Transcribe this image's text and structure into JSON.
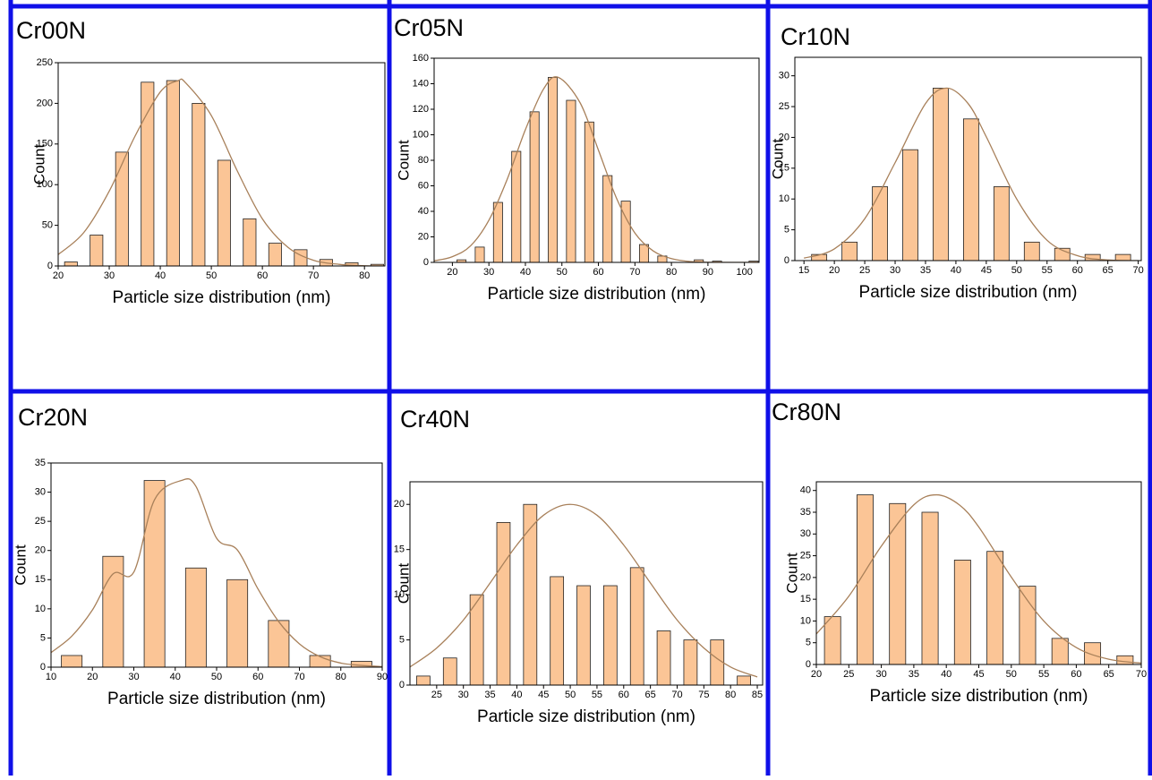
{
  "chart_data": [
    {
      "type": "histogram",
      "title": "Cr00N",
      "x_label": "Particle size distribution (nm)",
      "y_label": "Count",
      "bins": [
        20,
        25,
        30,
        35,
        40,
        45,
        50,
        55,
        60,
        65,
        70,
        75,
        80,
        85
      ],
      "values": [
        5,
        38,
        140,
        226,
        228,
        200,
        130,
        58,
        28,
        20,
        8,
        4,
        2
      ],
      "color": "#fbc596",
      "xlim": [
        20,
        84
      ],
      "ylim": [
        0,
        250
      ],
      "xticks": [
        20,
        30,
        40,
        50,
        60,
        70,
        80
      ],
      "yticks": [
        0,
        50,
        100,
        150,
        200,
        250
      ],
      "fit": {
        "color": "#a8805a",
        "x": [
          20,
          25,
          30,
          35,
          40,
          43.5,
          45,
          50,
          55,
          60,
          65,
          70,
          75,
          80,
          85
        ],
        "values": [
          14,
          41,
          92,
          159,
          214,
          228,
          225,
          185,
          118,
          58,
          23,
          7,
          2,
          0.3,
          0
        ]
      }
    },
    {
      "type": "histogram",
      "title": "Cr05N",
      "x_label": "Particle size distribution (nm)",
      "y_label": "Count",
      "bins": [
        20,
        25,
        30,
        35,
        40,
        45,
        50,
        55,
        60,
        65,
        70,
        75,
        80,
        85,
        90,
        95,
        100,
        105
      ],
      "values": [
        2,
        12,
        47,
        87,
        118,
        145,
        127,
        110,
        68,
        48,
        14,
        5,
        0,
        2,
        1,
        0,
        1
      ],
      "color": "#fbc596",
      "xlim": [
        15,
        104
      ],
      "ylim": [
        0,
        160
      ],
      "xticks": [
        20,
        30,
        40,
        50,
        60,
        70,
        80,
        90,
        100
      ],
      "yticks": [
        0,
        20,
        40,
        60,
        80,
        100,
        120,
        140,
        160
      ],
      "fit": {
        "color": "#a8805a",
        "x": [
          15,
          20,
          25,
          30,
          35,
          40,
          45,
          49,
          55,
          60,
          65,
          70,
          75,
          80,
          85,
          90,
          104
        ],
        "values": [
          1.2,
          4.5,
          13,
          33,
          65,
          104,
          136,
          145,
          125,
          88,
          50,
          23,
          9,
          3,
          0.7,
          0.1,
          0
        ]
      }
    },
    {
      "type": "histogram",
      "title": "Cr10N",
      "x_label": "Particle size distribution (nm)",
      "y_label": "Count",
      "bins": [
        15,
        20,
        25,
        30,
        35,
        40,
        45,
        50,
        55,
        60,
        65,
        70
      ],
      "values": [
        1,
        3,
        12,
        18,
        28,
        23,
        12,
        3,
        2,
        1,
        1
      ],
      "color": "#fbc596",
      "xlim": [
        13.5,
        70.5
      ],
      "ylim": [
        0,
        33
      ],
      "xticks": [
        15,
        20,
        25,
        30,
        35,
        40,
        45,
        50,
        55,
        60,
        65,
        70
      ],
      "yticks": [
        0,
        5,
        10,
        15,
        20,
        25,
        30
      ],
      "fit": {
        "color": "#a8805a",
        "x": [
          15,
          20,
          25,
          30,
          35,
          38.5,
          42,
          45,
          50,
          55,
          60,
          65,
          70
        ],
        "values": [
          0.4,
          1.9,
          6.8,
          15.9,
          25.5,
          28,
          25.5,
          20.1,
          10,
          3.3,
          0.8,
          0.1,
          0
        ]
      }
    },
    {
      "type": "histogram",
      "title": "Cr20N",
      "x_label": "Particle size distribution (nm)",
      "y_label": "Count",
      "bins": [
        10,
        20,
        30,
        40,
        50,
        60,
        70,
        80,
        90
      ],
      "values": [
        2,
        19,
        32,
        17,
        15,
        8,
        2,
        1
      ],
      "color": "#fbc596",
      "xlim": [
        10,
        90
      ],
      "ylim": [
        0,
        35
      ],
      "xticks": [
        10,
        20,
        30,
        40,
        50,
        60,
        70,
        80,
        90
      ],
      "yticks": [
        0,
        5,
        10,
        15,
        20,
        25,
        30,
        35
      ],
      "fit": {
        "color": "#a8805a",
        "x": [
          10,
          15,
          20,
          25,
          30,
          35,
          41.5,
          45,
          50,
          55,
          60,
          65,
          70,
          75,
          80,
          85,
          90
        ],
        "values": [
          2.5,
          5.3,
          9.8,
          16,
          16.3,
          28.7,
          32,
          31,
          22.1,
          20.1,
          13.4,
          7.8,
          4,
          1.8,
          0.7,
          0.3,
          0.1
        ]
      }
    },
    {
      "type": "histogram",
      "title": "Cr40N",
      "x_label": "Particle size distribution (nm)",
      "y_label": "Count",
      "bins": [
        20,
        25,
        30,
        35,
        40,
        45,
        50,
        55,
        60,
        65,
        70,
        75,
        80,
        85
      ],
      "values": [
        1,
        3,
        10,
        18,
        20,
        12,
        11,
        11,
        13,
        6,
        5,
        5,
        1
      ],
      "color": "#fbc596",
      "xlim": [
        20,
        86
      ],
      "ylim": [
        0,
        22.5
      ],
      "xticks": [
        25,
        30,
        35,
        40,
        45,
        50,
        55,
        60,
        65,
        70,
        75,
        80,
        85
      ],
      "yticks": [
        0,
        5,
        10,
        15,
        20
      ],
      "fit": {
        "color": "#a8805a",
        "x": [
          20,
          25,
          30,
          35,
          40,
          45,
          50,
          55,
          60,
          65,
          70,
          75,
          80,
          85
        ],
        "values": [
          2,
          4.1,
          7.2,
          11.3,
          15.5,
          18.8,
          20,
          18.8,
          15.5,
          11.3,
          7.2,
          4.1,
          2,
          0.9
        ]
      }
    },
    {
      "type": "histogram",
      "title": "Cr80N",
      "x_label": "Particle size distribution (nm)",
      "y_label": "Count",
      "bins": [
        20,
        25,
        30,
        35,
        40,
        45,
        50,
        55,
        60,
        65,
        70
      ],
      "values": [
        11,
        39,
        37,
        35,
        24,
        26,
        18,
        6,
        5,
        2
      ],
      "color": "#fbc596",
      "xlim": [
        20,
        70
      ],
      "ylim": [
        0,
        42
      ],
      "xticks": [
        20,
        25,
        30,
        35,
        40,
        45,
        50,
        55,
        60,
        65,
        70
      ],
      "yticks": [
        0,
        5,
        10,
        15,
        20,
        25,
        30,
        35,
        40
      ],
      "fit": {
        "color": "#a8805a",
        "x": [
          20,
          25,
          30,
          35,
          38.5,
          42,
          45,
          50,
          55,
          60,
          65,
          70
        ],
        "values": [
          7,
          15.7,
          27.2,
          36.7,
          39,
          36.7,
          31.6,
          20.1,
          10,
          3.9,
          1.2,
          0.3
        ]
      }
    }
  ]
}
